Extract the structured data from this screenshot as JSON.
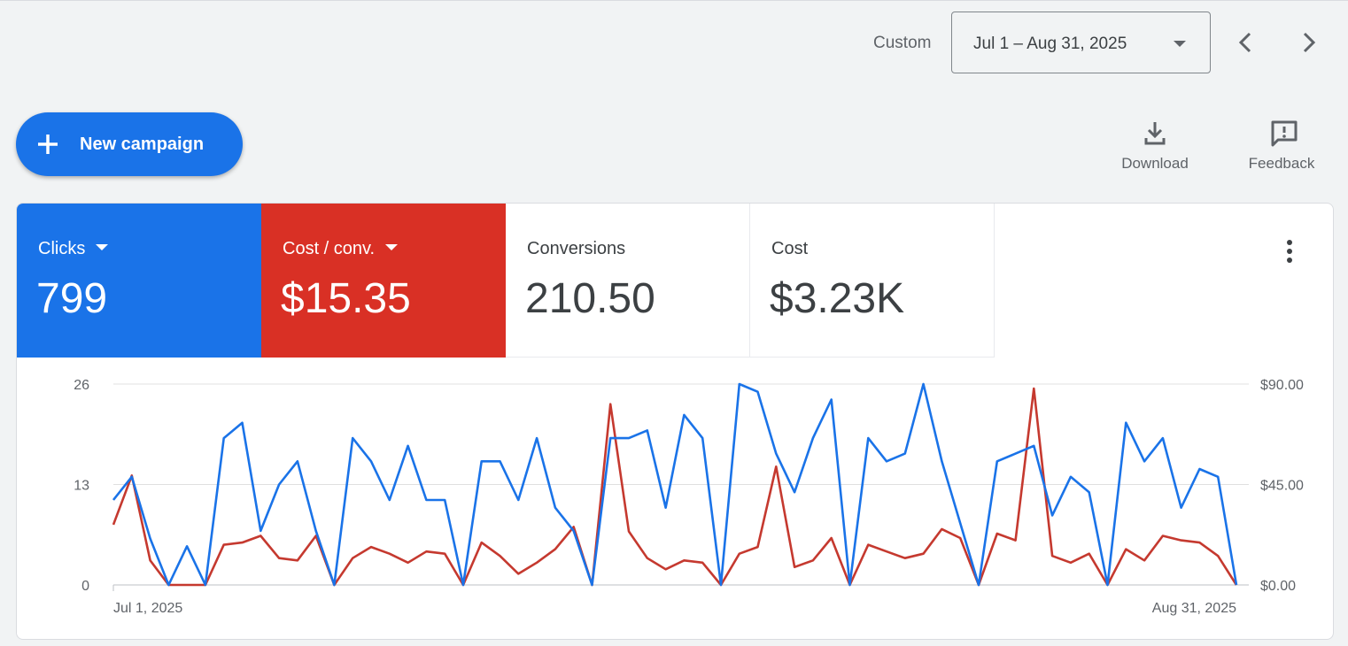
{
  "header": {
    "range_label": "Custom",
    "date_range": "Jul 1 – Aug 31, 2025",
    "prev_icon": "chevron-left-icon",
    "next_icon": "chevron-right-icon"
  },
  "actions": {
    "new_campaign": "New campaign",
    "download": "Download",
    "feedback": "Feedback"
  },
  "metrics": [
    {
      "label": "Clicks",
      "value": "799",
      "color": "#1a73e8"
    },
    {
      "label": "Cost / conv.",
      "value": "$15.35",
      "color": "#d93025"
    },
    {
      "label": "Conversions",
      "value": "210.50"
    },
    {
      "label": "Cost",
      "value": "$3.23K"
    }
  ],
  "chart_data": {
    "type": "line",
    "x_start_label": "Jul 1, 2025",
    "x_end_label": "Aug 31, 2025",
    "left_axis": {
      "ticks": [
        "0",
        "13",
        "26"
      ],
      "range": [
        0,
        26
      ]
    },
    "right_axis": {
      "ticks": [
        "$0.00",
        "$45.00",
        "$90.00"
      ],
      "range": [
        0,
        90
      ]
    },
    "grid": true,
    "series": [
      {
        "name": "Clicks",
        "axis": "left",
        "color": "#1a73e8",
        "values": [
          11,
          14,
          6,
          0,
          5,
          0,
          19,
          21,
          7,
          13,
          16,
          7,
          0,
          19,
          16,
          11,
          18,
          11,
          11,
          0,
          16,
          16,
          11,
          19,
          10,
          7,
          0,
          19,
          19,
          20,
          10,
          22,
          19,
          0,
          26,
          25,
          17,
          12,
          19,
          24,
          0,
          19,
          16,
          17,
          26,
          16,
          8,
          0,
          16,
          17,
          18,
          9,
          14,
          12,
          0,
          21,
          16,
          19,
          10,
          15,
          14,
          0
        ]
      },
      {
        "name": "Cost / conv.",
        "axis": "right",
        "color": "#c5392f",
        "values": [
          27,
          49,
          11,
          0,
          0,
          0,
          18,
          19,
          22,
          12,
          11,
          22,
          0,
          12,
          17,
          14,
          10,
          15,
          14,
          0,
          19,
          13,
          5,
          10,
          16,
          26,
          0,
          81,
          24,
          12,
          7,
          11,
          10,
          0,
          14,
          17,
          53,
          8,
          11,
          21,
          0,
          18,
          15,
          12,
          14,
          25,
          21,
          0,
          23,
          20,
          88,
          13,
          10,
          14,
          0,
          16,
          11,
          22,
          20,
          19,
          13,
          0
        ]
      }
    ]
  }
}
